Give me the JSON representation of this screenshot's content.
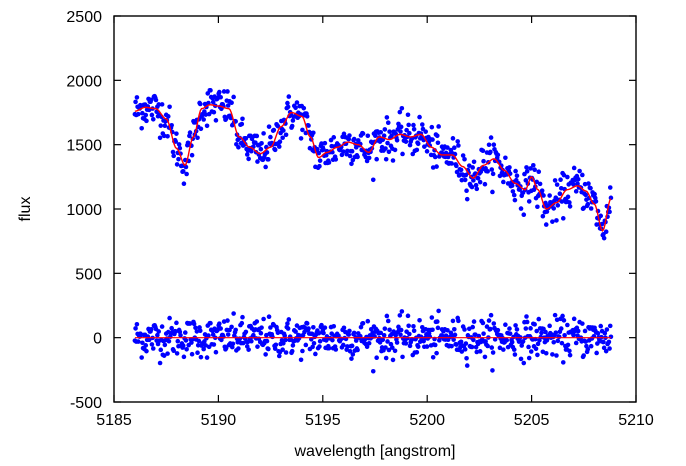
{
  "chart_data": {
    "type": "scatter",
    "title": "",
    "xlabel": "wavelength [angstrom]",
    "ylabel": "flux",
    "xlim": [
      5185,
      5210
    ],
    "ylim": [
      -500,
      2500
    ],
    "xticks": [
      5185,
      5190,
      5195,
      5200,
      5205,
      5210
    ],
    "yticks": [
      -500,
      0,
      500,
      1000,
      1500,
      2000,
      2500
    ],
    "xtick_labels": [
      "5185",
      "5190",
      "5195",
      "5200",
      "5205",
      "5210"
    ],
    "ytick_labels": [
      "-500",
      "0",
      "500",
      "1000",
      "1500",
      "2000",
      "2500"
    ],
    "grid": false,
    "x_range_data": [
      5186.0,
      5208.8
    ],
    "model_knots": {
      "x": [
        5186.0,
        5186.5,
        5187.0,
        5187.5,
        5188.0,
        5188.4,
        5188.8,
        5189.2,
        5189.6,
        5190.0,
        5190.5,
        5191.0,
        5191.5,
        5192.0,
        5192.5,
        5193.0,
        5193.5,
        5194.0,
        5194.4,
        5194.8,
        5195.2,
        5195.7,
        5196.2,
        5196.7,
        5197.2,
        5197.7,
        5198.2,
        5198.7,
        5199.2,
        5199.7,
        5200.2,
        5200.7,
        5201.2,
        5201.7,
        5202.2,
        5202.7,
        5203.2,
        5203.7,
        5204.2,
        5204.7,
        5205.0,
        5205.3,
        5205.7,
        5206.2,
        5206.7,
        5207.2,
        5207.6,
        5208.0,
        5208.4,
        5208.8
      ],
      "y": [
        1760,
        1790,
        1780,
        1700,
        1470,
        1340,
        1560,
        1780,
        1810,
        1800,
        1780,
        1560,
        1480,
        1430,
        1480,
        1640,
        1750,
        1720,
        1560,
        1400,
        1440,
        1480,
        1520,
        1500,
        1440,
        1560,
        1540,
        1580,
        1560,
        1580,
        1480,
        1420,
        1420,
        1330,
        1240,
        1340,
        1390,
        1300,
        1200,
        1150,
        1250,
        1150,
        1000,
        1050,
        1150,
        1180,
        1140,
        1040,
        830,
        1080
      ]
    },
    "series": [
      {
        "color": "#0000ff",
        "marker": "circle"
      },
      {
        "color": "#ff0000",
        "marker": "line"
      },
      {
        "color": "#0000ff",
        "marker": "circle"
      },
      {
        "color": "#ff0000",
        "marker": "line"
      }
    ]
  }
}
